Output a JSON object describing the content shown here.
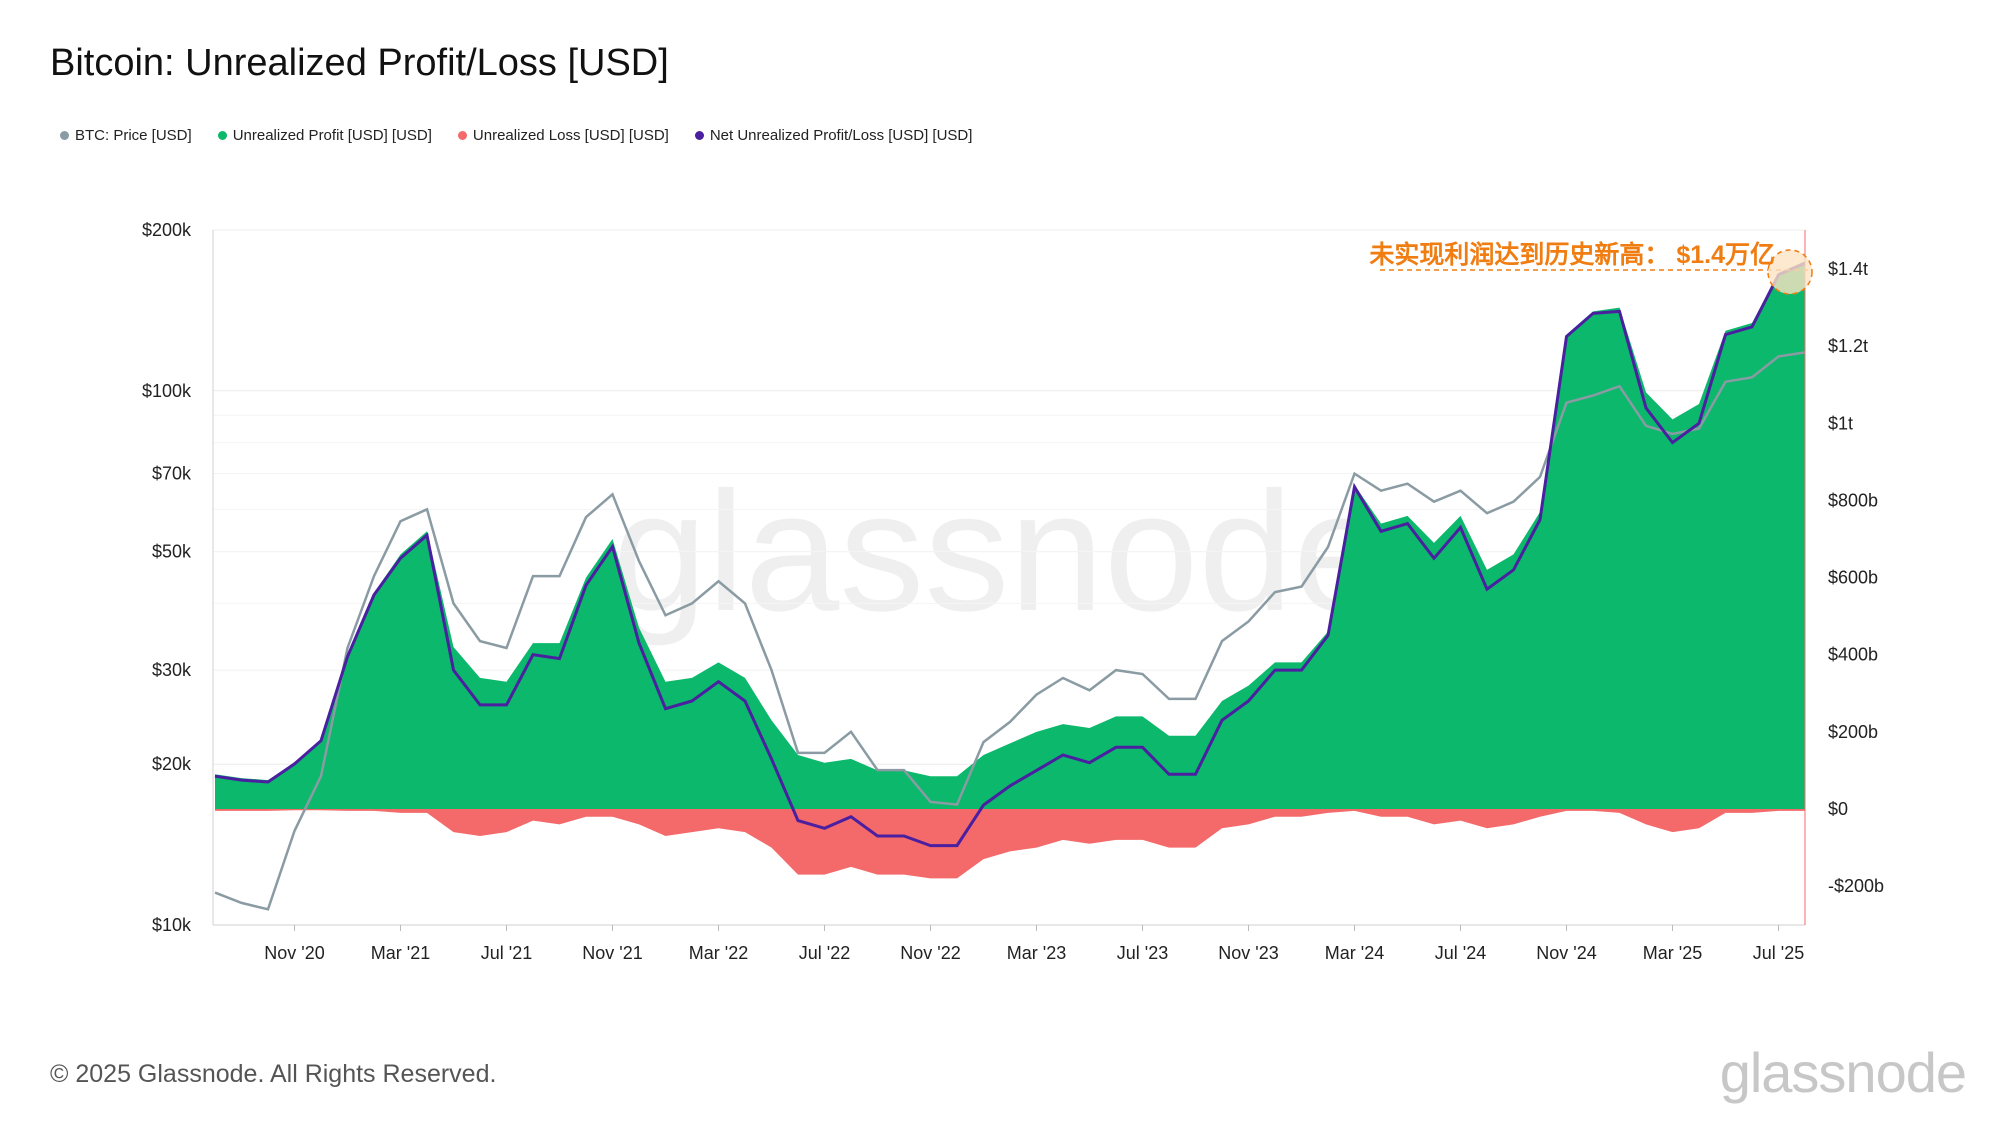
{
  "title": "Bitcoin: Unrealized Profit/Loss [USD]",
  "legend": [
    {
      "label": "BTC: Price [USD]",
      "color": "#8a9ba3"
    },
    {
      "label": "Unrealized Profit [USD] [USD]",
      "color": "#0bb86c"
    },
    {
      "label": "Unrealized Loss [USD] [USD]",
      "color": "#f46a6a"
    },
    {
      "label": "Net Unrealized Profit/Loss [USD] [USD]",
      "color": "#4a1fa0"
    }
  ],
  "footer": "© 2025 Glassnode. All Rights Reserved.",
  "brand": "glassnode",
  "watermark": "glassnode",
  "annotation": "未实现利润达到历史新高： $1.4万亿",
  "chart_data": {
    "type": "area",
    "x": [
      "2020-08",
      "2020-09",
      "2020-10",
      "2020-11",
      "2020-12",
      "2021-01",
      "2021-02",
      "2021-03",
      "2021-04",
      "2021-05",
      "2021-06",
      "2021-07",
      "2021-08",
      "2021-09",
      "2021-10",
      "2021-11",
      "2021-12",
      "2022-01",
      "2022-02",
      "2022-03",
      "2022-04",
      "2022-05",
      "2022-06",
      "2022-07",
      "2022-08",
      "2022-09",
      "2022-10",
      "2022-11",
      "2022-12",
      "2023-01",
      "2023-02",
      "2023-03",
      "2023-04",
      "2023-05",
      "2023-06",
      "2023-07",
      "2023-08",
      "2023-09",
      "2023-10",
      "2023-11",
      "2023-12",
      "2024-01",
      "2024-02",
      "2024-03",
      "2024-04",
      "2024-05",
      "2024-06",
      "2024-07",
      "2024-08",
      "2024-09",
      "2024-10",
      "2024-11",
      "2024-12",
      "2025-01",
      "2025-02",
      "2025-03",
      "2025-04",
      "2025-05",
      "2025-06",
      "2025-07",
      "2025-08"
    ],
    "series": [
      {
        "name": "BTC: Price [USD]",
        "axis": "left",
        "color": "#8a9ba3",
        "values": [
          11500,
          11000,
          10700,
          15000,
          19000,
          33000,
          45000,
          57000,
          60000,
          40000,
          34000,
          33000,
          45000,
          45000,
          58000,
          64000,
          48000,
          38000,
          40000,
          44000,
          40000,
          30000,
          21000,
          21000,
          23000,
          19500,
          19500,
          17000,
          16800,
          22000,
          24000,
          27000,
          29000,
          27500,
          30000,
          29500,
          26500,
          26500,
          34000,
          37000,
          42000,
          43000,
          51000,
          70000,
          65000,
          67000,
          62000,
          65000,
          59000,
          62000,
          69000,
          95000,
          98000,
          102000,
          86000,
          83000,
          85000,
          104000,
          106000,
          116000,
          118000
        ]
      },
      {
        "name": "Unrealized Profit [USD] [USD]",
        "axis": "right",
        "color": "#0bb86c",
        "values": [
          90,
          80,
          75,
          120,
          180,
          400,
          560,
          660,
          720,
          420,
          340,
          330,
          430,
          430,
          600,
          700,
          470,
          330,
          340,
          380,
          340,
          230,
          140,
          120,
          130,
          100,
          100,
          85,
          85,
          140,
          170,
          200,
          220,
          210,
          240,
          240,
          190,
          190,
          280,
          320,
          380,
          380,
          460,
          840,
          740,
          760,
          690,
          760,
          620,
          660,
          770,
          1230,
          1290,
          1300,
          1080,
          1010,
          1050,
          1240,
          1260,
          1390,
          1420
        ]
      },
      {
        "name": "Unrealized Loss [USD] [USD]",
        "axis": "right",
        "color": "#f46a6a",
        "values": [
          -5,
          -5,
          -5,
          -3,
          -3,
          -5,
          -5,
          -10,
          -10,
          -60,
          -70,
          -60,
          -30,
          -40,
          -20,
          -20,
          -40,
          -70,
          -60,
          -50,
          -60,
          -100,
          -170,
          -170,
          -150,
          -170,
          -170,
          -180,
          -180,
          -130,
          -110,
          -100,
          -80,
          -90,
          -80,
          -80,
          -100,
          -100,
          -50,
          -40,
          -20,
          -20,
          -10,
          -5,
          -20,
          -20,
          -40,
          -30,
          -50,
          -40,
          -20,
          -5,
          -5,
          -10,
          -40,
          -60,
          -50,
          -10,
          -10,
          -5,
          -5
        ]
      },
      {
        "name": "Net Unrealized Profit/Loss [USD] [USD]",
        "axis": "right",
        "color": "#4a1fa0",
        "values": [
          85,
          75,
          70,
          117,
          177,
          395,
          555,
          650,
          710,
          360,
          270,
          270,
          400,
          390,
          580,
          680,
          430,
          260,
          280,
          330,
          280,
          130,
          -30,
          -50,
          -20,
          -70,
          -70,
          -95,
          -95,
          10,
          60,
          100,
          140,
          120,
          160,
          160,
          90,
          90,
          230,
          280,
          360,
          360,
          450,
          835,
          720,
          740,
          650,
          730,
          570,
          620,
          750,
          1225,
          1285,
          1290,
          1040,
          950,
          1000,
          1230,
          1250,
          1385,
          1415
        ]
      }
    ],
    "x_ticks": [
      "Nov '20",
      "Mar '21",
      "Jul '21",
      "Nov '21",
      "Mar '22",
      "Jul '22",
      "Nov '22",
      "Mar '23",
      "Jul '23",
      "Nov '23",
      "Mar '24",
      "Jul '24",
      "Nov '24",
      "Mar '25",
      "Jul '25"
    ],
    "y_left_ticks": [
      "$200k",
      "$100k",
      "$70k",
      "$50k",
      "$30k",
      "$20k",
      "$10k"
    ],
    "y_left_tick_values": [
      200000,
      100000,
      70000,
      50000,
      30000,
      20000,
      10000
    ],
    "y_left_scale": "log",
    "y_left_range": [
      10000,
      200000
    ],
    "y_right_ticks": [
      "$1.4t",
      "$1.2t",
      "$1t",
      "$800b",
      "$600b",
      "$400b",
      "$200b",
      "$0",
      "-$200b"
    ],
    "y_right_tick_values": [
      1400,
      1200,
      1000,
      800,
      600,
      400,
      200,
      0,
      -200
    ],
    "y_right_unit": "billion USD",
    "y_right_range": [
      -300,
      1500
    ]
  }
}
